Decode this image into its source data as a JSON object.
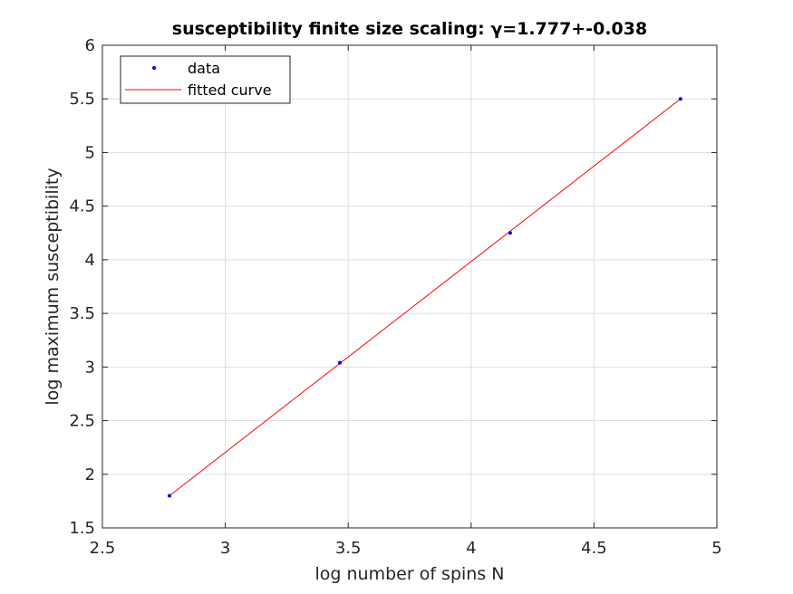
{
  "chart_data": {
    "type": "line",
    "title": "susceptibility finite size scaling: γ=1.777+-0.038",
    "xlabel": "log number of spins N",
    "ylabel": "log maximum susceptibility",
    "xlim": [
      2.5,
      5
    ],
    "ylim": [
      1.5,
      6
    ],
    "xticks": [
      2.5,
      3,
      3.5,
      4,
      4.5,
      5
    ],
    "xtick_labels": [
      "2.5",
      "3",
      "3.5",
      "4",
      "4.5",
      "5"
    ],
    "yticks": [
      1.5,
      2,
      2.5,
      3,
      3.5,
      4,
      4.5,
      5,
      5.5,
      6
    ],
    "ytick_labels": [
      "1.5",
      "2",
      "2.5",
      "3",
      "3.5",
      "4",
      "4.5",
      "5",
      "5.5",
      "6"
    ],
    "grid": true,
    "legend_position": "top-left",
    "series": [
      {
        "name": "data",
        "style": "markers",
        "color": "#0000ff",
        "x": [
          2.773,
          3.466,
          4.159,
          4.852
        ],
        "y": [
          1.8,
          3.04,
          4.25,
          5.5
        ]
      },
      {
        "name": "fitted curve",
        "style": "line",
        "color": "#ff0000",
        "x": [
          2.773,
          4.852
        ],
        "y": [
          1.8,
          5.5
        ]
      }
    ]
  }
}
